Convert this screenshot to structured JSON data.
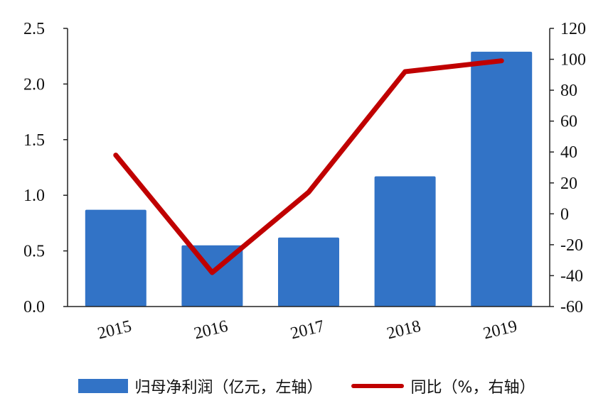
{
  "chart_data": {
    "type": "bar+line",
    "categories": [
      "2015",
      "2016",
      "2017",
      "2018",
      "2019"
    ],
    "series": [
      {
        "name": "归母净利润（亿元，左轴）",
        "type": "bar",
        "axis": "left",
        "values": [
          0.87,
          0.55,
          0.62,
          1.17,
          2.29
        ],
        "color": "#3273c6"
      },
      {
        "name": "同比（%，右轴）",
        "type": "line",
        "axis": "right",
        "values": [
          38,
          -38,
          14,
          92,
          99
        ],
        "color": "#c00000"
      }
    ],
    "left_axis": {
      "ylim": [
        0,
        2.5
      ],
      "ticks": [
        "0.0",
        "0.5",
        "1.0",
        "1.5",
        "2.0",
        "2.5"
      ]
    },
    "right_axis": {
      "ylim": [
        -60,
        120
      ],
      "ticks": [
        "-60",
        "-40",
        "-20",
        "0",
        "20",
        "40",
        "60",
        "80",
        "100",
        "120"
      ]
    },
    "grid": false,
    "legend_position": "bottom"
  }
}
